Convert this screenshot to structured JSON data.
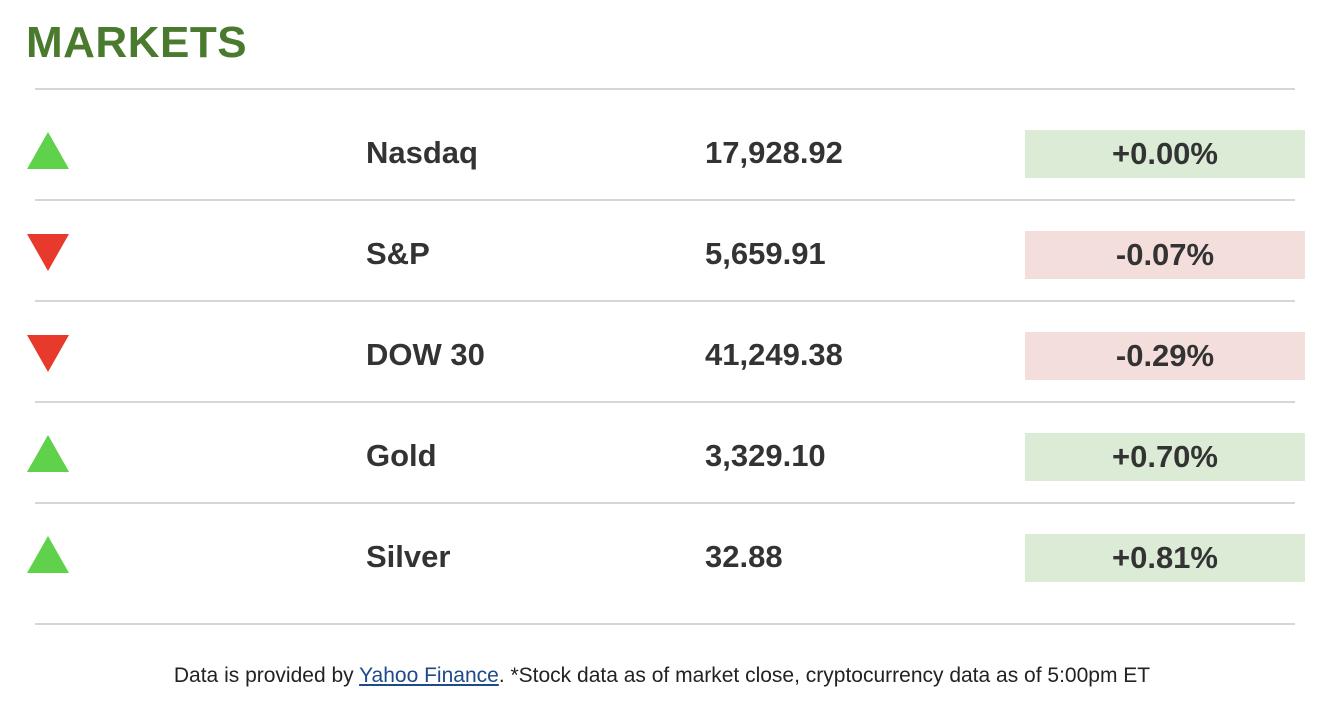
{
  "title": "MARKETS",
  "rows": [
    {
      "direction": "up",
      "name": "Nasdaq",
      "value": "17,928.92",
      "change": "+0.00%"
    },
    {
      "direction": "down",
      "name": "S&P",
      "value": "5,659.91",
      "change": "-0.07%"
    },
    {
      "direction": "down",
      "name": "DOW 30",
      "value": "41,249.38",
      "change": "-0.29%"
    },
    {
      "direction": "up",
      "name": "Gold",
      "value": "3,329.10",
      "change": "+0.70%"
    },
    {
      "direction": "up",
      "name": "Silver",
      "value": "32.88",
      "change": "+0.81%"
    }
  ],
  "footer": {
    "prefix": "Data is provided by ",
    "link_text": "Yahoo Finance",
    "suffix": ". *Stock data as of market close, cryptocurrency data as of 5:00pm ET"
  },
  "colors": {
    "title": "#4a7a2e",
    "up_arrow": "#5fd14a",
    "down_arrow": "#e83a2c",
    "positive_bg": "#dcebd6",
    "negative_bg": "#f3dedb",
    "link": "#1f4a8a"
  }
}
